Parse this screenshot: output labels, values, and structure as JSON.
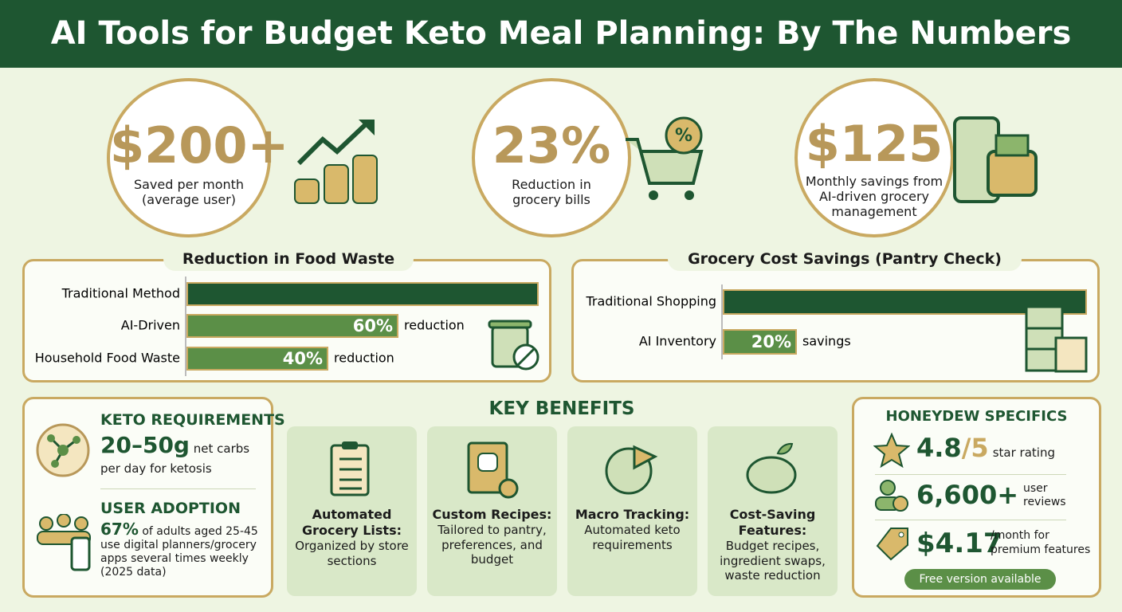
{
  "title": "AI Tools for Budget Keto Meal Planning: By The Numbers",
  "stats": [
    {
      "value": "$200+",
      "label": "Saved per month (average user)"
    },
    {
      "value": "23%",
      "label": "Reduction in grocery bills"
    },
    {
      "value": "$125",
      "label": "Monthly savings from AI-driven grocery management"
    }
  ],
  "chart_data": [
    {
      "type": "bar",
      "title": "Reduction in Food Waste",
      "categories": [
        "Traditional Method",
        "AI-Driven",
        "Household Food Waste"
      ],
      "values": [
        100,
        60,
        40
      ],
      "value_labels": [
        null,
        "60%",
        "40%"
      ],
      "notes": [
        null,
        "reduction",
        "reduction"
      ],
      "colors": [
        "#1e5631",
        "#5b8f47",
        "#5b8f47"
      ],
      "xlim": [
        0,
        100
      ]
    },
    {
      "type": "bar",
      "title": "Grocery Cost Savings (Pantry Check)",
      "categories": [
        "Traditional Shopping",
        "AI Inventory"
      ],
      "values": [
        100,
        20
      ],
      "value_labels": [
        null,
        "20%"
      ],
      "notes": [
        null,
        "savings"
      ],
      "colors": [
        "#1e5631",
        "#5b8f47"
      ],
      "xlim": [
        0,
        100
      ]
    }
  ],
  "keto": {
    "title": "KETO REQUIREMENTS",
    "value": "20–50g",
    "text": "net carbs",
    "text2": "per day for ketosis"
  },
  "adoption": {
    "title": "USER ADOPTION",
    "value": "67%",
    "text": "of adults aged 25-45 use digital planners/grocery apps several times weekly (2025 data)"
  },
  "benefits": {
    "title": "KEY BENEFITS",
    "items": [
      {
        "heading": "Automated Grocery Lists:",
        "text": "Organized by store sections"
      },
      {
        "heading": "Custom Recipes:",
        "text": "Tailored to pantry, preferences, and budget"
      },
      {
        "heading": "Macro Tracking:",
        "text": "Automated keto requirements"
      },
      {
        "heading": "Cost-Saving Features:",
        "text": "Budget recipes, ingredient swaps, waste reduction"
      }
    ]
  },
  "honeydew": {
    "title": "HONEYDEW SPECIFICS",
    "rating": "4.8",
    "rating_max": "/5",
    "rating_label": "star rating",
    "reviews": "6,600+",
    "reviews_label": "user reviews",
    "price": "$4.17",
    "price_label": "/month for premium features",
    "badge": "Free version available"
  }
}
